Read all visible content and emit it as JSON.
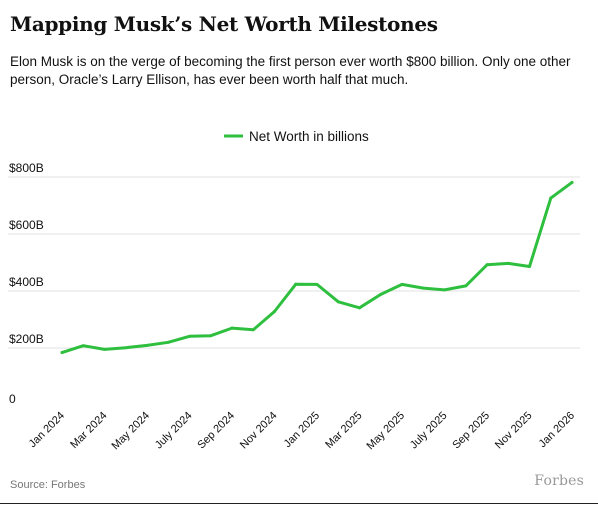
{
  "header": {
    "title": "Mapping Musk’s Net Worth Milestones",
    "subtitle": "Elon Musk is on the verge of becoming the first person ever worth $800 billion. Only one other person, Oracle’s Larry Ellison, has ever been worth half that much."
  },
  "footer": {
    "source": "Source: Forbes",
    "brand": "Forbes"
  },
  "colors": {
    "line": "#2fbf3f",
    "grid": "#e2e2e2",
    "text": "#111111"
  },
  "chart_data": {
    "type": "line",
    "title": "",
    "xlabel": "",
    "ylabel": "",
    "ylim": [
      0,
      800
    ],
    "yticks": [
      {
        "value": 0,
        "label": "0"
      },
      {
        "value": 200,
        "label": "$200B"
      },
      {
        "value": 400,
        "label": "$400B"
      },
      {
        "value": 600,
        "label": "$600B"
      },
      {
        "value": 800,
        "label": "$800B"
      }
    ],
    "xtick_labels": [
      "Jan 2024",
      "Mar 2024",
      "May 2024",
      "July 2024",
      "Sep 2024",
      "Nov 2024",
      "Jan 2025",
      "Mar 2025",
      "May 2025",
      "July 2025",
      "Sep 2025",
      "Nov 2025",
      "Jan 2026"
    ],
    "grid": true,
    "legend_position": "top-center",
    "series": [
      {
        "name": "Net Worth in billions",
        "x": [
          "Jan 2024",
          "Feb 2024",
          "Mar 2024",
          "Apr 2024",
          "May 2024",
          "Jun 2024",
          "July 2024",
          "Aug 2024",
          "Sep 2024",
          "Oct 2024",
          "Nov 2024",
          "Dec 2024",
          "Jan 2025",
          "Feb 2025",
          "Mar 2025",
          "Apr 2025",
          "May 2025",
          "Jun 2025",
          "July 2025",
          "Aug 2025",
          "Sep 2025",
          "Oct 2025",
          "Nov 2025",
          "Dec 2025",
          "Jan 2026"
        ],
        "values": [
          184,
          208,
          195,
          201,
          209,
          220,
          241,
          243,
          270,
          264,
          328,
          424,
          423,
          362,
          341,
          388,
          423,
          410,
          404,
          418,
          492,
          497,
          486,
          726,
          781
        ]
      }
    ]
  }
}
